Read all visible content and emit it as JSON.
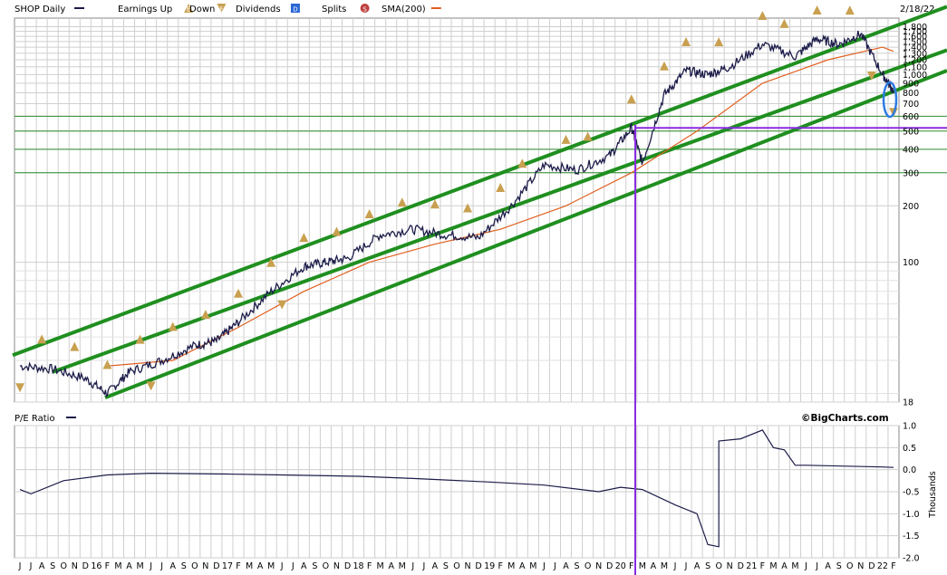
{
  "header": {
    "symbol_label": "SHOP Daily",
    "legend": [
      {
        "label": "Earnings Up",
        "icon": "earnings-up-icon",
        "glyph": "E",
        "color": "#c8a050"
      },
      {
        "label": "Down",
        "icon": "earnings-down-icon",
        "glyph": "E",
        "color": "#c8a050"
      },
      {
        "label": "Dividends",
        "icon": "dividend-icon",
        "glyph": "D",
        "color": "#2a66d6"
      },
      {
        "label": "Splits",
        "icon": "split-icon",
        "glyph": "S",
        "color": "#c04040"
      },
      {
        "label": "SMA(200)",
        "icon": "sma-line-icon",
        "color": "#e06020"
      }
    ],
    "date": "2/18/22",
    "line_color": "#1c1c4a"
  },
  "pe_panel": {
    "title": "P/E Ratio",
    "watermark": "©BigCharts.com",
    "unit_label": "Thousands"
  },
  "chart_data": [
    {
      "type": "line",
      "name": "SHOP Daily",
      "scale": "log",
      "ylim": [
        18,
        2000
      ],
      "y_ticks": [
        18,
        100,
        200,
        300,
        400,
        500,
        600,
        700,
        800,
        900,
        1000,
        1100,
        1200,
        1300,
        1400,
        1500,
        1600,
        1700,
        1800
      ],
      "y_tick_labels": [
        "18",
        "100",
        "200",
        "300",
        "400",
        "500",
        "600",
        "700",
        "800",
        "900",
        "1,000",
        "1,100",
        "1,200",
        "1,300",
        "1,400",
        "1,500",
        "1,600",
        "1,700",
        "1,800"
      ],
      "x_labels": [
        "J",
        "J",
        "A",
        "S",
        "O",
        "N",
        "D",
        "16",
        "F",
        "M",
        "A",
        "M",
        "J",
        "J",
        "A",
        "S",
        "O",
        "N",
        "D",
        "17",
        "F",
        "M",
        "A",
        "M",
        "J",
        "J",
        "A",
        "S",
        "O",
        "N",
        "D",
        "18",
        "F",
        "M",
        "A",
        "M",
        "J",
        "J",
        "A",
        "S",
        "O",
        "N",
        "D",
        "19",
        "F",
        "M",
        "A",
        "M",
        "J",
        "J",
        "A",
        "S",
        "O",
        "N",
        "D",
        "20",
        "F",
        "M",
        "A",
        "M",
        "J",
        "J",
        "A",
        "S",
        "O",
        "N",
        "D",
        "21",
        "F",
        "M",
        "A",
        "M",
        "J",
        "J",
        "A",
        "S",
        "O",
        "N",
        "D",
        "22",
        "F"
      ],
      "x_range": [
        "2015-06",
        "2022-02"
      ],
      "price": {
        "x": [
          "2015-06",
          "2015-09",
          "2015-12",
          "2016-02",
          "2016-04",
          "2016-07",
          "2016-10",
          "2016-12",
          "2017-02",
          "2017-05",
          "2017-08",
          "2017-10",
          "2017-12",
          "2018-03",
          "2018-06",
          "2018-09",
          "2018-12",
          "2019-03",
          "2019-06",
          "2019-09",
          "2019-12",
          "2020-02",
          "2020-03",
          "2020-05",
          "2020-07",
          "2020-09",
          "2020-11",
          "2021-02",
          "2021-05",
          "2021-07",
          "2021-09",
          "2021-11",
          "2022-01",
          "2022-02"
        ],
        "y": [
          28,
          27,
          24,
          20,
          26,
          30,
          36,
          38,
          48,
          70,
          95,
          100,
          105,
          140,
          150,
          140,
          135,
          200,
          330,
          310,
          370,
          520,
          340,
          780,
          1050,
          1000,
          1100,
          1450,
          1250,
          1550,
          1450,
          1650,
          1000,
          820
        ]
      },
      "sma200": {
        "x": [
          "2016-02",
          "2016-08",
          "2017-02",
          "2017-08",
          "2018-02",
          "2018-08",
          "2019-02",
          "2019-08",
          "2020-02",
          "2020-08",
          "2021-02",
          "2021-08",
          "2022-01",
          "2022-02"
        ],
        "y": [
          28,
          30,
          45,
          70,
          100,
          125,
          150,
          200,
          300,
          500,
          900,
          1200,
          1400,
          1330
        ]
      },
      "channels": [
        {
          "name": "upper",
          "y0": 32,
          "y1": 2300
        },
        {
          "name": "middle",
          "y0": 26,
          "y1": 1350
        },
        {
          "name": "lower",
          "y0": 19,
          "y1": 1050
        }
      ],
      "earnings_up_dates": [
        "2015-08",
        "2015-11",
        "2016-02",
        "2016-05",
        "2016-08",
        "2016-11",
        "2017-02",
        "2017-05",
        "2017-08",
        "2017-11",
        "2018-02",
        "2018-05",
        "2018-08",
        "2018-11",
        "2019-02",
        "2019-04",
        "2019-08",
        "2019-10",
        "2020-02",
        "2020-05",
        "2020-07",
        "2020-10",
        "2021-02",
        "2021-04",
        "2021-07",
        "2021-10"
      ],
      "earnings_down_dates": [
        "2015-06",
        "2016-06",
        "2017-06",
        "2021-12",
        "2022-02"
      ],
      "support_levels": [
        300,
        400,
        500,
        600
      ],
      "purple_level": 520,
      "purple_date": "2020-03"
    },
    {
      "type": "line",
      "name": "P/E Ratio",
      "ylim": [
        -2.0,
        1.0
      ],
      "y_ticks": [
        -2.0,
        -1.5,
        -1.0,
        -0.5,
        0.0,
        0.5,
        1.0
      ],
      "y_tick_labels": [
        "-2.0",
        "-1.5",
        "-1.0",
        "-0.5",
        "0.0",
        "0.5",
        "1.0"
      ],
      "x": [
        "2015-06",
        "2015-07",
        "2015-10",
        "2016-02",
        "2016-06",
        "2017-01",
        "2017-06",
        "2018-01",
        "2018-06",
        "2019-01",
        "2019-06",
        "2019-11",
        "2020-01",
        "2020-03",
        "2020-06",
        "2020-08",
        "2020-09",
        "2020-10",
        "2020-10",
        "2020-12",
        "2021-02",
        "2021-03",
        "2021-04",
        "2021-05",
        "2021-06",
        "2022-01",
        "2022-02"
      ],
      "y": [
        -0.45,
        -0.55,
        -0.25,
        -0.12,
        -0.08,
        -0.1,
        -0.12,
        -0.15,
        -0.2,
        -0.28,
        -0.35,
        -0.5,
        -0.4,
        -0.45,
        -0.8,
        -1.0,
        -1.7,
        -1.75,
        0.65,
        0.7,
        0.9,
        0.5,
        0.45,
        0.1,
        0.1,
        0.06,
        0.05
      ]
    }
  ]
}
